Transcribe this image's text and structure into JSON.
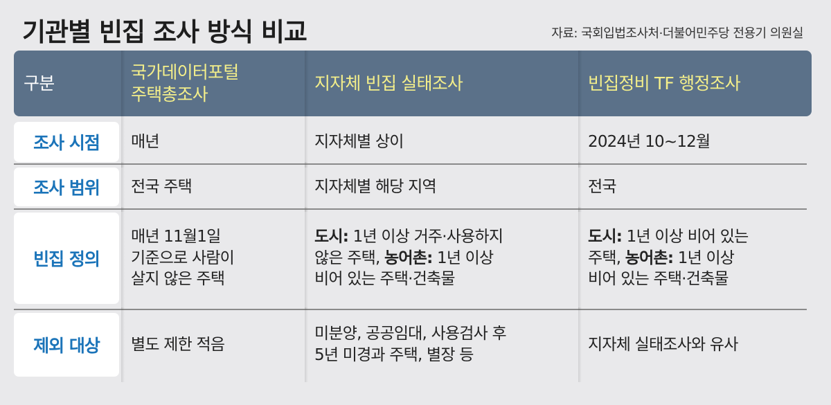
{
  "title": "기관별 빈집 조사 방식 비교",
  "source": "자료: 국회입법조사처·더불어민주당 전용기 의원실",
  "colors": {
    "header_bg": "#5b7189",
    "header_text": "#f4ef8a",
    "label_text": "#1b74b9"
  },
  "table": {
    "headers": [
      "구분",
      "국가데이터포털\n주택총조사",
      "지자체 빈집 실태조사",
      "빈집정비 TF 행정조사"
    ],
    "rows": [
      {
        "label": "조사 시점",
        "cells": [
          "매년",
          "지자체별 상이",
          "2024년 10~12월"
        ]
      },
      {
        "label": "조사 범위",
        "cells": [
          "전국 주택",
          "지자체별 해당 지역",
          "전국"
        ]
      },
      {
        "label": "빈집 정의",
        "cells": [
          "매년 11월1일\n기준으로 사람이\n살지 않은 주택",
          {
            "b1": "도시:",
            "t1": " 1년 이상 거주·사용하지\n않은 주택, ",
            "b2": "농어촌:",
            "t2": " 1년 이상\n비어 있는 주택·건축물"
          },
          {
            "b1": "도시:",
            "t1": " 1년 이상 비어 있는\n주택,  ",
            "b2": "농어촌:",
            "t2": " 1년 이상\n비어 있는 주택·건축물"
          }
        ]
      },
      {
        "label": "제외 대상",
        "cells": [
          "별도 제한 적음",
          "미분양, 공공임대, 사용검사 후\n5년 미경과 주택, 별장 등",
          "지자체 실태조사와 유사"
        ]
      }
    ]
  }
}
